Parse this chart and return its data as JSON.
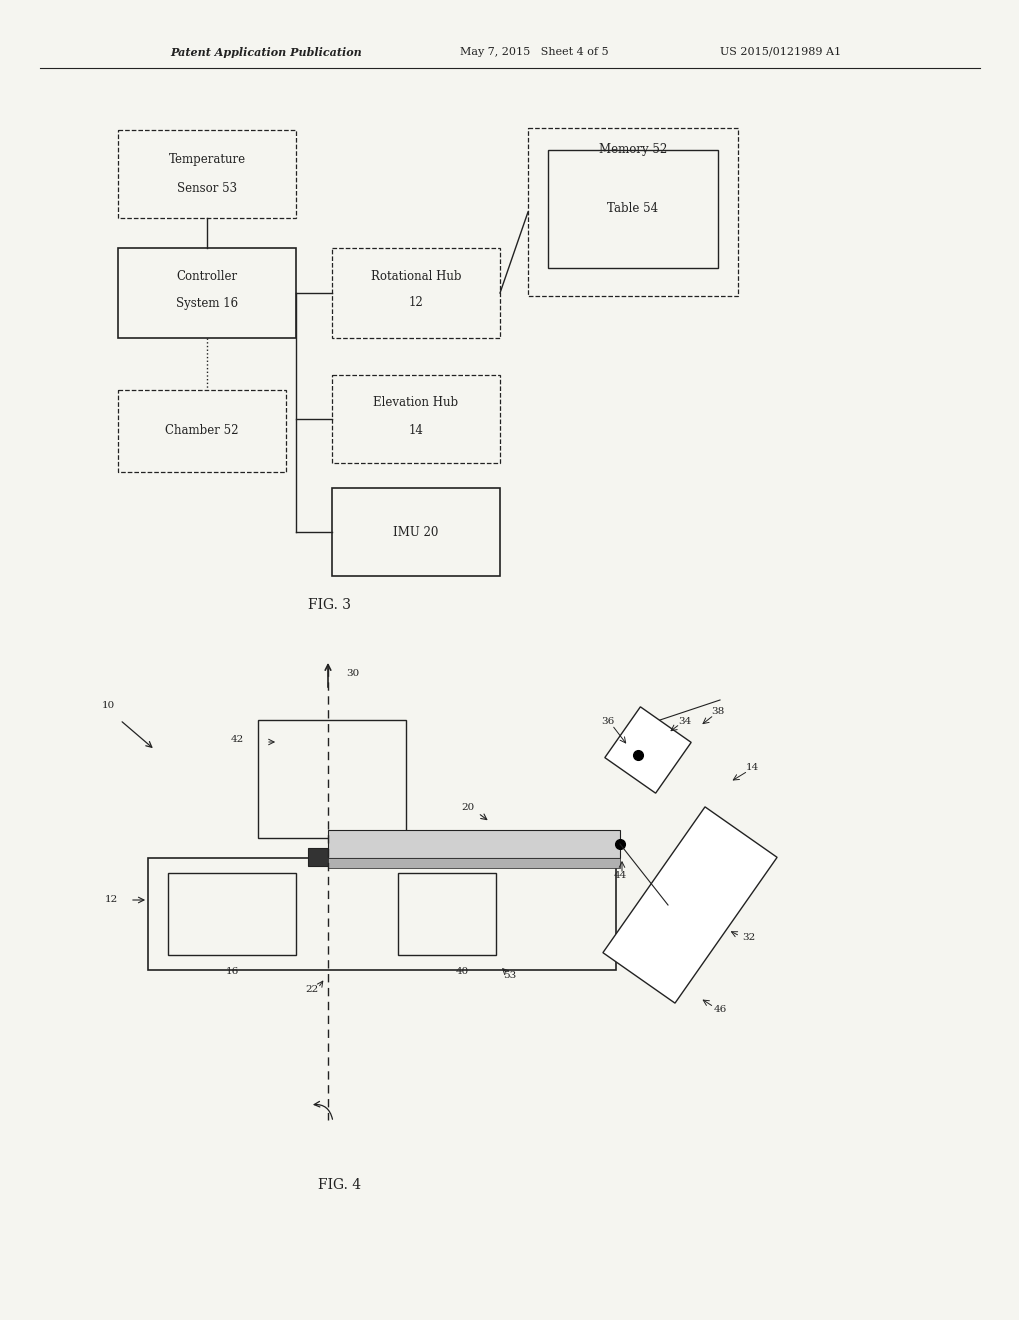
{
  "header_left": "Patent Application Publication",
  "header_mid": "May 7, 2015   Sheet 4 of 5",
  "header_right": "US 2015/0121989 A1",
  "fig3_caption": "FIG. 3",
  "fig4_caption": "FIG. 4",
  "bg_color": "#f5f5f0",
  "line_color": "#222222"
}
